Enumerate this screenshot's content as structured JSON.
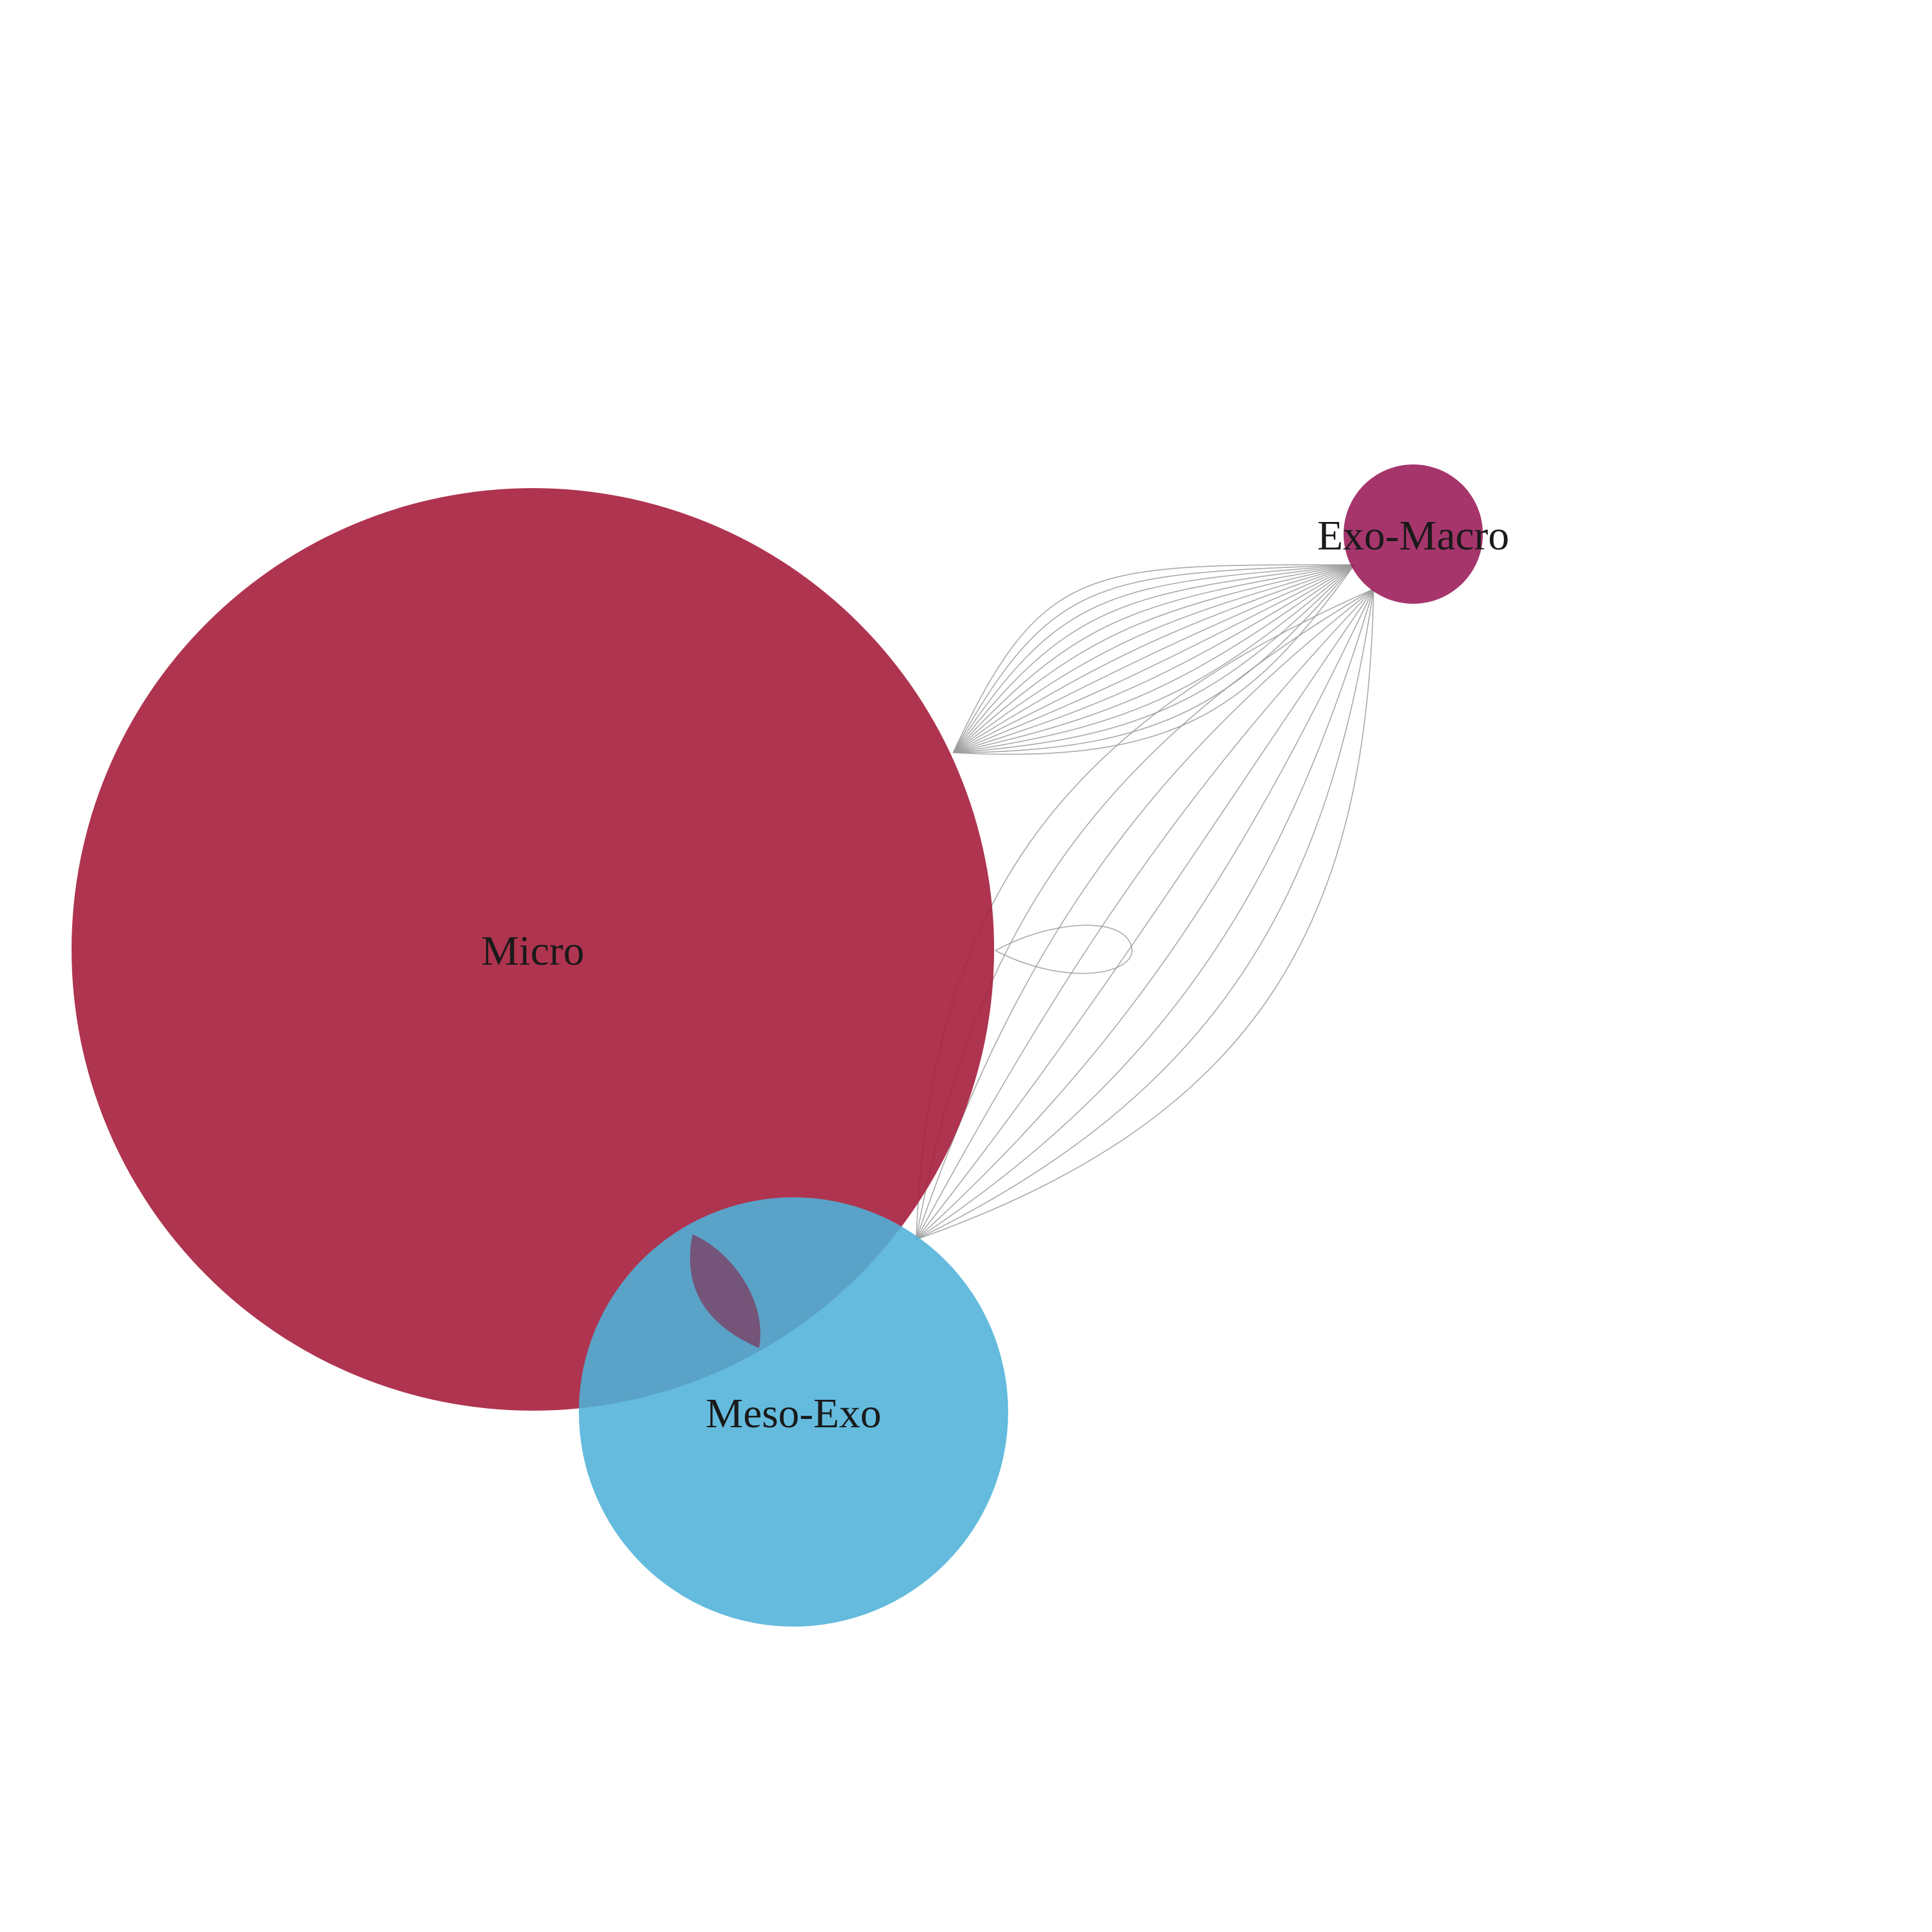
{
  "graph": {
    "nodes": [
      {
        "id": "micro",
        "label": "Micro",
        "color": "#a61e3c"
      },
      {
        "id": "meso_exo",
        "label": "Meso-Exo",
        "color": "#4fb2d8"
      },
      {
        "id": "exo_macro",
        "label": "Exo-Macro",
        "color": "#9c1f5c"
      }
    ],
    "edges": [
      {
        "source": "micro",
        "target": "exo_macro",
        "count": 16
      },
      {
        "source": "meso_exo",
        "target": "exo_macro",
        "count": 9
      },
      {
        "source": "micro",
        "target": "micro",
        "count": 1
      },
      {
        "source": "micro",
        "target": "meso_exo",
        "count": 1
      }
    ]
  }
}
